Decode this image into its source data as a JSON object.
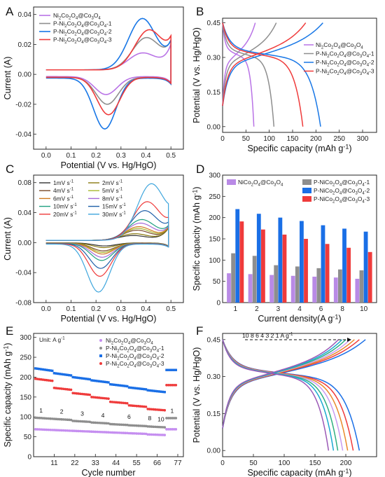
{
  "figure": {
    "panel_letters": [
      "A",
      "B",
      "C",
      "D",
      "E",
      "F"
    ]
  },
  "chart_data": [
    {
      "panel": "A",
      "type": "line",
      "xlabel": "Potential (V vs. Hg/HgO)",
      "ylabel": "Current (A)",
      "xlim": [
        -0.05,
        0.55
      ],
      "ylim": [
        -0.05,
        0.045
      ],
      "xticks": [
        "0.0",
        "0.1",
        "0.2",
        "0.3",
        "0.4",
        "0.5"
      ],
      "yticks": [
        "-0.04",
        "-0.02",
        "0.00",
        "0.02",
        "0.04"
      ],
      "legend_position": "top-left",
      "series": [
        {
          "name": "Ni2Co2O4@Co3O4",
          "color": "#b973e6",
          "cv": {
            "Ea": 0.385,
            "Ia": 0.011,
            "Ec": 0.24,
            "Ic": -0.012,
            "I0": -0.0015
          }
        },
        {
          "name": "P-Ni2Co2O4@Co3O4-1",
          "color": "#8e8e8e",
          "cv": {
            "Ea": 0.4,
            "Ia": 0.021,
            "Ec": 0.245,
            "Ic": -0.018,
            "I0": -0.002
          }
        },
        {
          "name": "P-Ni2Co2O4@Co3O4-2",
          "color": "#1877e6",
          "cv": {
            "Ea": 0.385,
            "Ia": 0.034,
            "Ec": 0.235,
            "Ic": -0.034,
            "I0": -0.0025
          }
        },
        {
          "name": "P-Ni2Co2O4@Co3O4-3",
          "color": "#ef3b3b",
          "cv": {
            "Ea": 0.41,
            "Ia": 0.026,
            "Ec": 0.25,
            "Ic": -0.025,
            "I0": -0.002
          }
        }
      ]
    },
    {
      "panel": "B",
      "type": "line",
      "xlabel": "Specific capacity (mAh g⁻¹)",
      "ylabel": "Potential (V vs. Hg/HgO)",
      "xlim": [
        0,
        330
      ],
      "ylim": [
        -0.025,
        0.47
      ],
      "xticks": [
        "0",
        "50",
        "100",
        "150",
        "200",
        "250",
        "300"
      ],
      "yticks": [
        "0.00",
        "0.15",
        "0.30",
        "0.45"
      ],
      "legend_position": "right",
      "series": [
        {
          "name": "Ni2Co2O4@Co3O4",
          "color": "#b973e6",
          "charge_capacity": 70,
          "discharge_capacity": 67
        },
        {
          "name": "P-Ni2Co2O4@Co3O4-1",
          "color": "#8e8e8e",
          "charge_capacity": 115,
          "discharge_capacity": 110
        },
        {
          "name": "P-Ni2Co2O4@Co3O4-2",
          "color": "#1877e6",
          "charge_capacity": 215,
          "discharge_capacity": 210
        },
        {
          "name": "P-Ni2Co2O4@Co3O4-3",
          "color": "#ef3b3b",
          "charge_capacity": 178,
          "discharge_capacity": 172
        }
      ]
    },
    {
      "panel": "C",
      "type": "line",
      "xlabel": "Potential (V vs. Hg/HgO)",
      "ylabel": "Current (A)",
      "xlim": [
        -0.05,
        0.55
      ],
      "ylim": [
        -0.08,
        0.09
      ],
      "xticks": [
        "0.0",
        "0.1",
        "0.2",
        "0.3",
        "0.4",
        "0.5"
      ],
      "yticks": [
        "-0.08",
        "-0.04",
        "0.00",
        "0.04",
        "0.08"
      ],
      "legend_position": "top-left",
      "series": [
        {
          "name": "1mV s⁻¹",
          "color": "#333333",
          "scan_rate": 1
        },
        {
          "name": "2mV s⁻¹",
          "color": "#8a7a10",
          "scan_rate": 2
        },
        {
          "name": "4mV s⁻¹",
          "color": "#7a4a2a",
          "scan_rate": 4
        },
        {
          "name": "5mV s⁻¹",
          "color": "#a8b830",
          "scan_rate": 5
        },
        {
          "name": "6mV s⁻¹",
          "color": "#d07a20",
          "scan_rate": 6
        },
        {
          "name": "8mV s⁻¹",
          "color": "#a66ad8",
          "scan_rate": 8
        },
        {
          "name": "10mV s⁻¹",
          "color": "#20a080",
          "scan_rate": 10
        },
        {
          "name": "15mV s⁻¹",
          "color": "#1f5fa8",
          "scan_rate": 15
        },
        {
          "name": "20mV s⁻¹",
          "color": "#ef3b3b",
          "scan_rate": 20
        },
        {
          "name": "30mV s⁻¹",
          "color": "#3fa6dd",
          "scan_rate": 30
        }
      ]
    },
    {
      "panel": "D",
      "type": "bar",
      "xlabel": "Current density(A g⁻¹)",
      "ylabel": "Specific capacity (mAh g⁻¹)",
      "ylim": [
        0,
        300
      ],
      "yticks": [
        "0",
        "50",
        "100",
        "150",
        "200",
        "250",
        "300"
      ],
      "categories": [
        "1",
        "2",
        "3",
        "4",
        "6",
        "8",
        "10"
      ],
      "legend_position": "top",
      "series": [
        {
          "name": "NiCo2O4@Co3O4",
          "color": "#b98ae6",
          "values": [
            69,
            67,
            65,
            63,
            61,
            59,
            56
          ]
        },
        {
          "name": "P-NiCo2O4@Co3O4-1",
          "color": "#8e8e8e",
          "values": [
            116,
            110,
            88,
            85,
            81,
            78,
            76
          ]
        },
        {
          "name": "P-NiCo2O4@Co3O4-2",
          "color": "#1a6fe6",
          "values": [
            220,
            209,
            200,
            192,
            182,
            174,
            167
          ]
        },
        {
          "name": "P-NiCo2O4@Co3O4-3",
          "color": "#ef3b3b",
          "values": [
            191,
            172,
            160,
            150,
            138,
            129,
            119
          ]
        }
      ]
    },
    {
      "panel": "E",
      "type": "scatter",
      "xlabel": "Cycle number",
      "ylabel": "Specific capacity (mAh g⁻¹)",
      "xlim": [
        0,
        80
      ],
      "ylim": [
        0,
        310
      ],
      "xticks": [
        "11",
        "22",
        "33",
        "44",
        "55",
        "66",
        "77"
      ],
      "yticks": [
        "0",
        "50",
        "100",
        "150",
        "200",
        "250",
        "300"
      ],
      "unit_note": "Unit: A g⁻¹",
      "rate_annotations": [
        "1",
        "2",
        "3",
        "4",
        "6",
        "8",
        "10",
        "1"
      ],
      "legend_position": "top-right",
      "series": [
        {
          "name": "Ni2Co2O4@Co3O4",
          "color": "#c58ef0",
          "marker": "circle",
          "step_values": [
            69,
            67,
            65,
            63,
            61,
            59,
            56,
            69
          ]
        },
        {
          "name": "P-Ni2Co2O4@Co3O4-1",
          "color": "#8e8e8e",
          "marker": "circle",
          "step_values": [
            98,
            95,
            90,
            86,
            82,
            79,
            76,
            97
          ]
        },
        {
          "name": "P-Ni2Co2O4@Co3O4-2",
          "color": "#1a6fe6",
          "marker": "square",
          "step_values": [
            222,
            210,
            200,
            192,
            182,
            174,
            167,
            218
          ]
        },
        {
          "name": "P-Ni2Co2O4@Co3O4-3",
          "color": "#ef3b3b",
          "marker": "circle",
          "step_values": [
            196,
            173,
            160,
            150,
            138,
            129,
            120,
            180
          ]
        }
      ]
    },
    {
      "panel": "F",
      "type": "line",
      "xlabel": "Specific capacity (mAh g⁻¹)",
      "ylabel": "Potential (V vs. Hg/HgO)",
      "xlim": [
        0,
        250
      ],
      "ylim": [
        -0.025,
        0.475
      ],
      "xticks": [
        "0",
        "50",
        "100",
        "150",
        "200"
      ],
      "yticks": [
        "0.00",
        "0.15",
        "0.30",
        "0.45"
      ],
      "annotation": "10   8   6   4   3   2   1 A g⁻¹",
      "series": [
        {
          "name": "1 A g⁻¹",
          "color": "#1a6fe6",
          "charge_capacity": 232,
          "discharge_capacity": 222
        },
        {
          "name": "2 A g⁻¹",
          "color": "#ef3b3b",
          "charge_capacity": 222,
          "discharge_capacity": 212
        },
        {
          "name": "3 A g⁻¹",
          "color": "#e98a2b",
          "charge_capacity": 214,
          "discharge_capacity": 203
        },
        {
          "name": "4 A g⁻¹",
          "color": "#c89af0",
          "charge_capacity": 207,
          "discharge_capacity": 195
        },
        {
          "name": "6 A g⁻¹",
          "color": "#2fb080",
          "charge_capacity": 200,
          "discharge_capacity": 187
        },
        {
          "name": "8 A g⁻¹",
          "color": "#1aa9d0",
          "charge_capacity": 194,
          "discharge_capacity": 180
        },
        {
          "name": "10 A g⁻¹",
          "color": "#9b59b6",
          "charge_capacity": 188,
          "discharge_capacity": 172
        }
      ]
    }
  ]
}
